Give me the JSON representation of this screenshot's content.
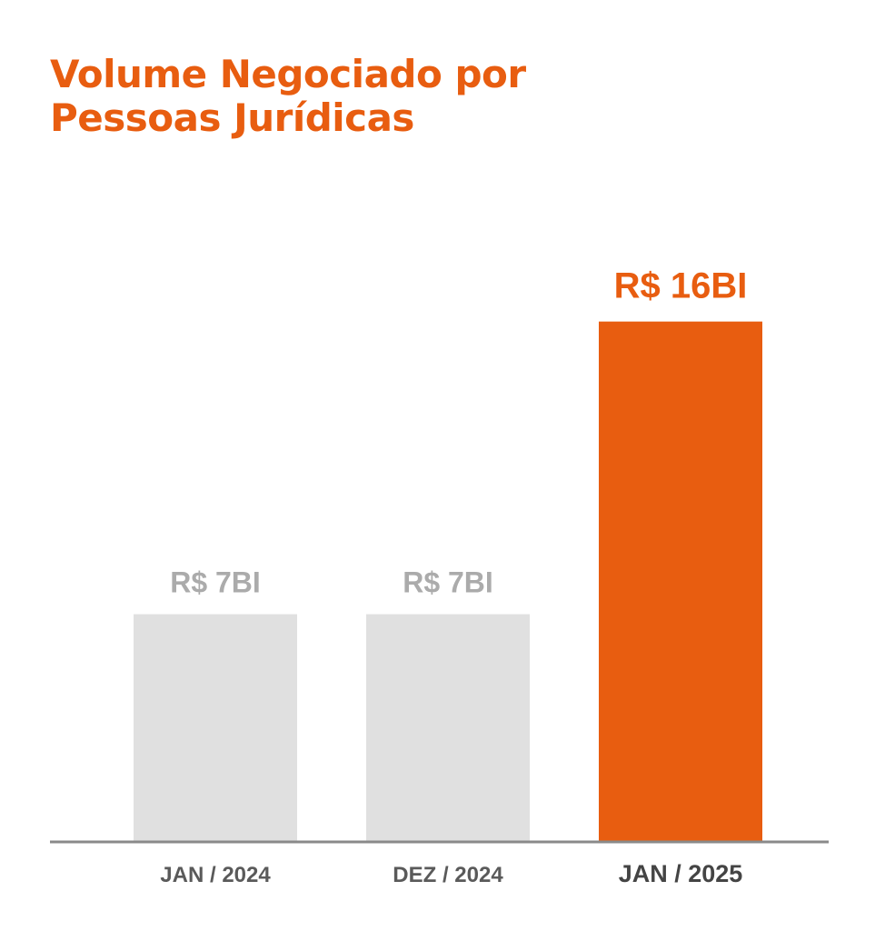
{
  "title_lines": [
    "Volume Negociado por",
    "Pessoas Jurídicas"
  ],
  "colors": {
    "accent": "#E85D10",
    "muted_bar": "#E0E0E0",
    "muted_label": "#ABABAB",
    "tick_label": "#5A5A5A",
    "tick_label_highlight": "#444444",
    "axis": "#8A8A8A"
  },
  "chart_data": {
    "type": "bar",
    "title": "Volume Negociado por Pessoas Jurídicas",
    "categories": [
      "JAN / 2024",
      "DEZ / 2024",
      "JAN / 2025"
    ],
    "values": [
      7,
      7,
      16
    ],
    "value_labels": [
      "R$ 7BI",
      "R$ 7BI",
      "R$ 16BI"
    ],
    "highlight_index": 2,
    "unit": "R$ bilhões",
    "ylim": [
      0,
      17.5
    ],
    "grid": false,
    "legend": "none",
    "xlabel": "",
    "ylabel": ""
  }
}
